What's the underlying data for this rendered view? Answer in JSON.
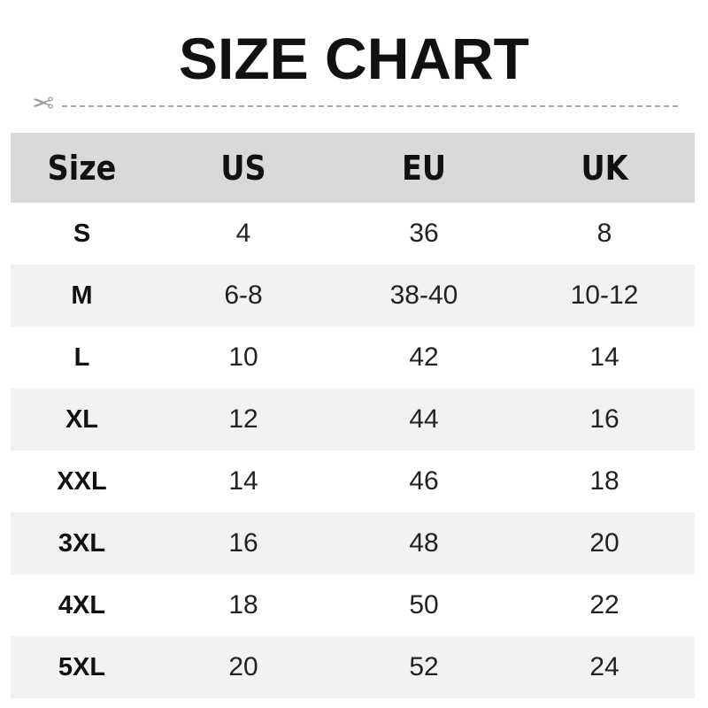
{
  "title": "SIZE CHART",
  "icons": {
    "cut": "scissors-icon"
  },
  "colors": {
    "header_bg": "#d9d9d9",
    "alt_row_bg": "#f2f2f2"
  },
  "chart_data": {
    "type": "table",
    "title": "SIZE CHART",
    "columns": [
      "Size",
      "US",
      "EU",
      "UK"
    ],
    "rows": [
      [
        "S",
        "4",
        "36",
        "8"
      ],
      [
        "M",
        "6-8",
        "38-40",
        "10-12"
      ],
      [
        "L",
        "10",
        "42",
        "14"
      ],
      [
        "XL",
        "12",
        "44",
        "16"
      ],
      [
        "XXL",
        "14",
        "46",
        "18"
      ],
      [
        "3XL",
        "16",
        "48",
        "20"
      ],
      [
        "4XL",
        "18",
        "50",
        "22"
      ],
      [
        "5XL",
        "20",
        "52",
        "24"
      ]
    ]
  }
}
